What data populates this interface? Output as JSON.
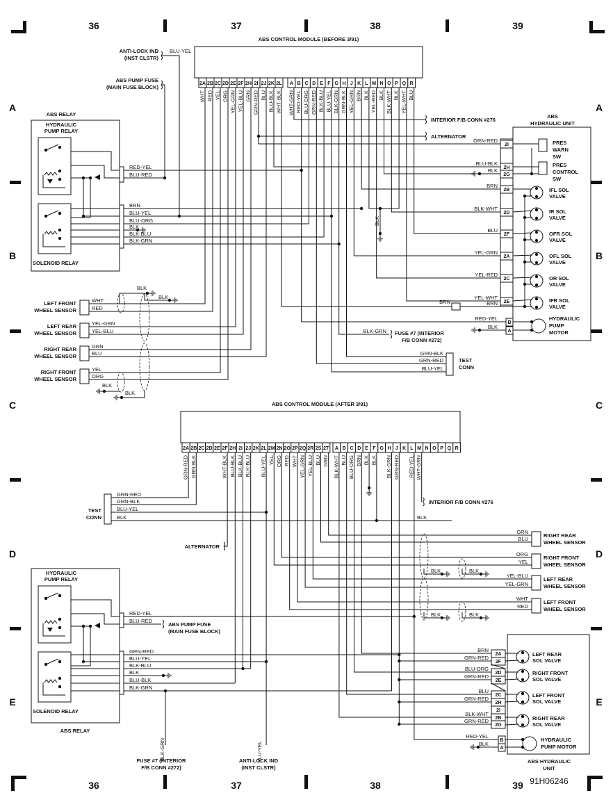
{
  "figure_id": "91H06246",
  "grid": {
    "columns": [
      "36",
      "37",
      "38",
      "39"
    ],
    "rows": [
      "A",
      "B",
      "C",
      "D",
      "E"
    ]
  },
  "top": {
    "module": {
      "title": "ABS CONTROL MODULE (BEFORE 3/91)",
      "pins2": [
        "2A",
        "2B",
        "2C",
        "2D",
        "2E",
        "2F",
        "2H",
        "2I",
        "2J",
        "2K",
        "2L"
      ],
      "wires2": [
        "WHT",
        "RED",
        "YEL",
        "ORG",
        "YEL-GRN",
        "YEL-BLU",
        "GRN",
        "GRN-RED",
        "BLU",
        "BLU-BLK",
        "WHT-BLK"
      ],
      "pins": [
        "A",
        "B",
        "C",
        "D",
        "E",
        "F",
        "G",
        "H",
        "J",
        "K",
        "L",
        "M",
        "N",
        "O",
        "P",
        "Q",
        "R"
      ],
      "wires": [
        "WHT-GRN",
        "RED-YEL",
        "BLU-ORG",
        "GRN-RED",
        "BLK-BLU",
        "BLU-YEL",
        "BLK-GRN",
        "GRN-BLK",
        "YEL-GRN",
        "BRN",
        "BLK",
        "YEL-RED",
        "BLK",
        "BLK-WHT",
        "BLK",
        "YEL-WHT",
        "BLU"
      ]
    },
    "anti_lock": {
      "label": [
        "ANTI-LOCK IND",
        "(INST CLSTR)"
      ],
      "wire": "BLU-YEL"
    },
    "pump_fuse": {
      "label": [
        "ABS PUMP FUSE",
        "(MAIN FUSE BLOCK)"
      ]
    },
    "relay": {
      "title": "ABS RELAY",
      "pump_relay": [
        "HYDRAULIC",
        "PUMP RELAY"
      ],
      "solenoid_relay": "SOLENOID RELAY",
      "wires": [
        "RED-YEL",
        "BLU-RED",
        "BRN",
        "BLU-YEL",
        "BLU-ORG",
        "BLK",
        "BLK-BLU",
        "BLK-GRN"
      ]
    },
    "sensors": [
      {
        "name": [
          "LEFT FRONT",
          "WHEEL SENSOR"
        ],
        "wires": [
          "WHT",
          "RED"
        ]
      },
      {
        "name": [
          "LEFT REAR",
          "WHEEL SENSOR"
        ],
        "wires": [
          "YEL-GRN",
          "YEL-BLU"
        ]
      },
      {
        "name": [
          "RIGHT REAR",
          "WHEEL SENSOR"
        ],
        "wires": [
          "GRN",
          "BLU"
        ]
      },
      {
        "name": [
          "RIGHT FRONT",
          "WHEEL SENSOR"
        ],
        "wires": [
          "YEL",
          "ORG"
        ]
      }
    ],
    "grounds": [
      "BLK",
      "BLK",
      "BLK",
      "BLK"
    ],
    "interior_conn": "INTERIOR F/B CONN #276",
    "alternator": "ALTERNATOR",
    "fuse7": {
      "label": [
        "FUSE #7 (INTERIOR",
        "F/B CONN #272)"
      ],
      "wire": "BLK-GRN"
    },
    "module_ground": "BLK",
    "test_conn": {
      "label": [
        "TEST",
        "CONN"
      ],
      "wires": [
        "GRN-BLK",
        "GRN-RED",
        "BLU-YEL"
      ]
    },
    "hydraulic_unit": {
      "title": [
        "ABS",
        "HYDRAULIC UNIT"
      ],
      "pins": [
        {
          "pin": "2I",
          "wire": "GRN-RED"
        },
        {
          "pin": "2H",
          "wire": "BLU-BLK"
        },
        {
          "pin": "2G",
          "wire": "BLK"
        },
        {
          "pin": "2B",
          "wire": "BRN"
        },
        {
          "pin": "2D",
          "wire": "BLK-WHT"
        },
        {
          "pin": "2F",
          "wire": "BLU"
        },
        {
          "pin": "2A",
          "wire": "YEL-GRN"
        },
        {
          "pin": "2C",
          "wire": "YEL-RED"
        },
        {
          "pin": "2E",
          "wire": "YEL-WHT"
        },
        {
          "pin": "B",
          "wire": "RED-YEL"
        },
        {
          "pin": "A",
          "wire": "BLK"
        }
      ],
      "brn_splice": [
        "BRN",
        "BRN"
      ],
      "components": [
        [
          "PRES",
          "WARN",
          "SW"
        ],
        [
          "PRES",
          "CONTROL",
          "SW"
        ],
        [
          "IFL SOL",
          "VALVE"
        ],
        [
          "IR SOL",
          "VALVE"
        ],
        [
          "OFR SOL",
          "VALVE"
        ],
        [
          "OFL SOL",
          "VALVE"
        ],
        [
          "OR SOL",
          "VALVE"
        ],
        [
          "IFR SOL",
          "VALVE"
        ],
        [
          "HYDRAULIC",
          "PUMP",
          "MOTOR"
        ]
      ]
    }
  },
  "bottom": {
    "module": {
      "title": "ABS CONTROL MODULE (AFTER 3/91)",
      "pins2": [
        "2A",
        "2B",
        "2C",
        "2D",
        "2E",
        "2F",
        "2H",
        "2I",
        "2J",
        "2K",
        "2L",
        "2M",
        "2N",
        "2O",
        "2P",
        "2Q",
        "2R",
        "2S",
        "2T"
      ],
      "wires2": [
        "GRN-RED",
        "GRN-BLK",
        "",
        "",
        "",
        "WHT-BLK",
        "BLU-BLK",
        "BLK-BLU",
        "BLK-BLU",
        "",
        "BLU-YEL",
        "YEL",
        "ORG",
        "RED",
        "WHT",
        "YEL.GRN",
        "YEL.BLU",
        "BLU",
        "GRN"
      ],
      "pins": [
        "A",
        "B",
        "C",
        "D",
        "E",
        "F",
        "G",
        "H",
        "J",
        "K",
        "L",
        "M",
        "N",
        "O",
        "P",
        "Q",
        "R"
      ],
      "wires": [
        "BLK-WHT",
        "BLU",
        "BLU-ORG",
        "BRN",
        "BLK",
        "BLK",
        "",
        "BLK-GRN",
        "GRN-RED",
        "",
        "RED-YEL",
        "WHT-GRN",
        "",
        "",
        "",
        "",
        ""
      ]
    },
    "test_conn": {
      "label": [
        "TEST",
        "CONN"
      ],
      "wires": [
        "GRN-RED",
        "GRN-BLK",
        "BLU-YEL",
        "BLK"
      ]
    },
    "test_blk": "BLK",
    "alternator": "ALTERNATOR",
    "interior_conn": "INTERIOR F/B CONN #276",
    "sensors": [
      {
        "name": [
          "RIGHT REAR",
          "WHEEL SENSOR"
        ],
        "wires": [
          "GRN",
          "BLU"
        ]
      },
      {
        "name": [
          "RIGHT FRONT",
          "WHEEL SENSOR"
        ],
        "wires": [
          "ORG",
          "YEL"
        ]
      },
      {
        "name": [
          "LEFT REAR",
          "WHEEL SENSOR"
        ],
        "wires": [
          "YEL-BLU",
          "YEL-GRN"
        ]
      },
      {
        "name": [
          "LEFT FRONT",
          "WHEEL SENSOR"
        ],
        "wires": [
          "WHT",
          "RED"
        ]
      }
    ],
    "grounds": [
      "BLK",
      "BLK",
      "BLK",
      "BLK"
    ],
    "relay": {
      "title": "ABS RELAY",
      "pump_relay": [
        "HYDRAULIC",
        "PUMP RELAY"
      ],
      "solenoid_relay": "SOLENOID RELAY",
      "wires": [
        "RED-YEL",
        "BLU-RED",
        "GRN-RED",
        "BLU-YEL",
        "BLK-BLU",
        "BLK",
        "BLU-BLK",
        "BLK-GRN"
      ]
    },
    "pump_fuse": {
      "label": [
        "ABS PUMP FUSE",
        "(MAIN FUSE BLOCK)"
      ]
    },
    "fuse7": {
      "label": [
        "FUSE #7 (INTERIOR",
        "F/B CONN #272)"
      ],
      "wire": "BLK-GRN"
    },
    "anti_lock": {
      "label": [
        "ANTI-LOCK IND",
        "(INST CLSTR)"
      ],
      "wire": "BLU-YEL"
    },
    "hydraulic_unit": {
      "title": [
        "ABS HYDRAULIC",
        "UNIT"
      ],
      "pins": [
        {
          "pin": "2A",
          "wire": "BRN"
        },
        {
          "pin": "2F",
          "wire": "GRN-RED"
        },
        {
          "pin": "2D",
          "wire": "BLU-ORG"
        },
        {
          "pin": "2E",
          "wire": "GRN-RED"
        },
        {
          "pin": "2C",
          "wire": "BLU"
        },
        {
          "pin": "2H",
          "wire": "GRN-RED"
        },
        {
          "pin": "2I",
          "wire": ""
        },
        {
          "pin": "2B",
          "wire": "BLK-WHT"
        },
        {
          "pin": "2G",
          "wire": "GRN-RED"
        },
        {
          "pin": "B",
          "wire": "RED-YEL"
        },
        {
          "pin": "A",
          "wire": "BLK"
        }
      ],
      "components": [
        [
          "LEFT REAR",
          "SOL VALVE"
        ],
        [
          "RIGHT FRONT",
          "SOL VALVE"
        ],
        [
          "LEFT FRONT",
          "SOL VALVE"
        ],
        [
          "RIGHT REAR",
          "SOL VALVE"
        ],
        [
          "HYDRAULIC",
          "PUMP MOTOR"
        ]
      ]
    }
  }
}
